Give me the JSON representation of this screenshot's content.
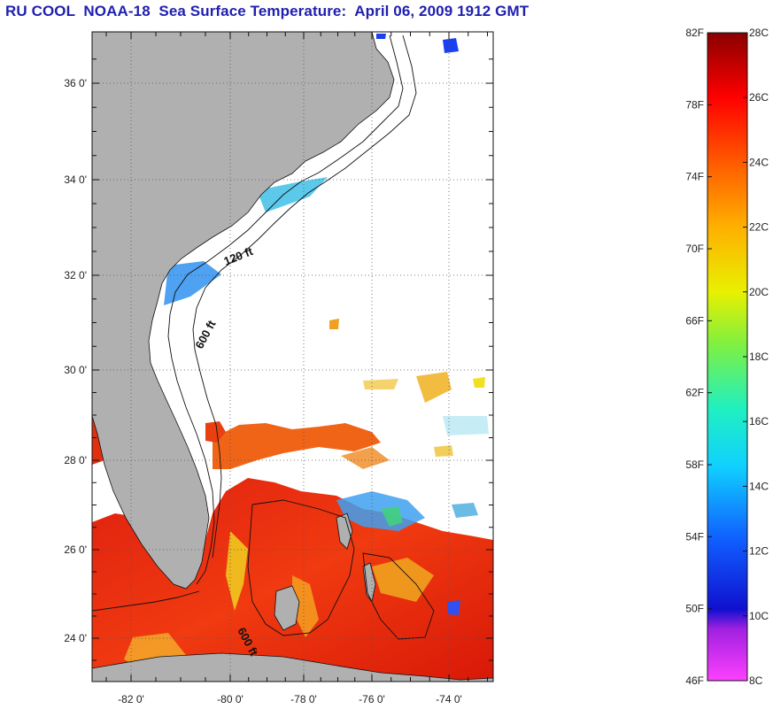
{
  "title": "RU COOL  NOAA-18  Sea Surface Temperature:  April 06, 2009 1912 GMT",
  "map": {
    "lat_labels": [
      "36 0'",
      "34 0'",
      "32 0'",
      "30 0'",
      "28 0'",
      "26 0'",
      "24 0'"
    ],
    "lon_labels": [
      "-82 0'",
      "-80 0'",
      "-78 0'",
      "-76 0'",
      "-74 0'"
    ],
    "lat_ticks": [
      36,
      34,
      32,
      30,
      28,
      26,
      24
    ],
    "lon_ticks": [
      -82,
      -80,
      -78,
      -76,
      -74
    ],
    "lat_range": [
      23,
      37
    ],
    "lon_range": [
      -83,
      -73
    ],
    "contour_labels": {
      "shallow": "120 ft",
      "deep": "600 ft",
      "deep_south": "600 ft"
    },
    "colors": {
      "land": "#b0b0b0",
      "ocean_cloud": "#ffffff",
      "grid": "#555555"
    }
  },
  "colorbar": {
    "fahrenheit_labels": [
      "82F",
      "78F",
      "74F",
      "70F",
      "66F",
      "62F",
      "58F",
      "54F",
      "50F",
      "46F"
    ],
    "celsius_labels": [
      "28C",
      "26C",
      "24C",
      "22C",
      "20C",
      "18C",
      "16C",
      "14C",
      "12C",
      "10C",
      "8C"
    ],
    "range_c": [
      8,
      28
    ]
  }
}
